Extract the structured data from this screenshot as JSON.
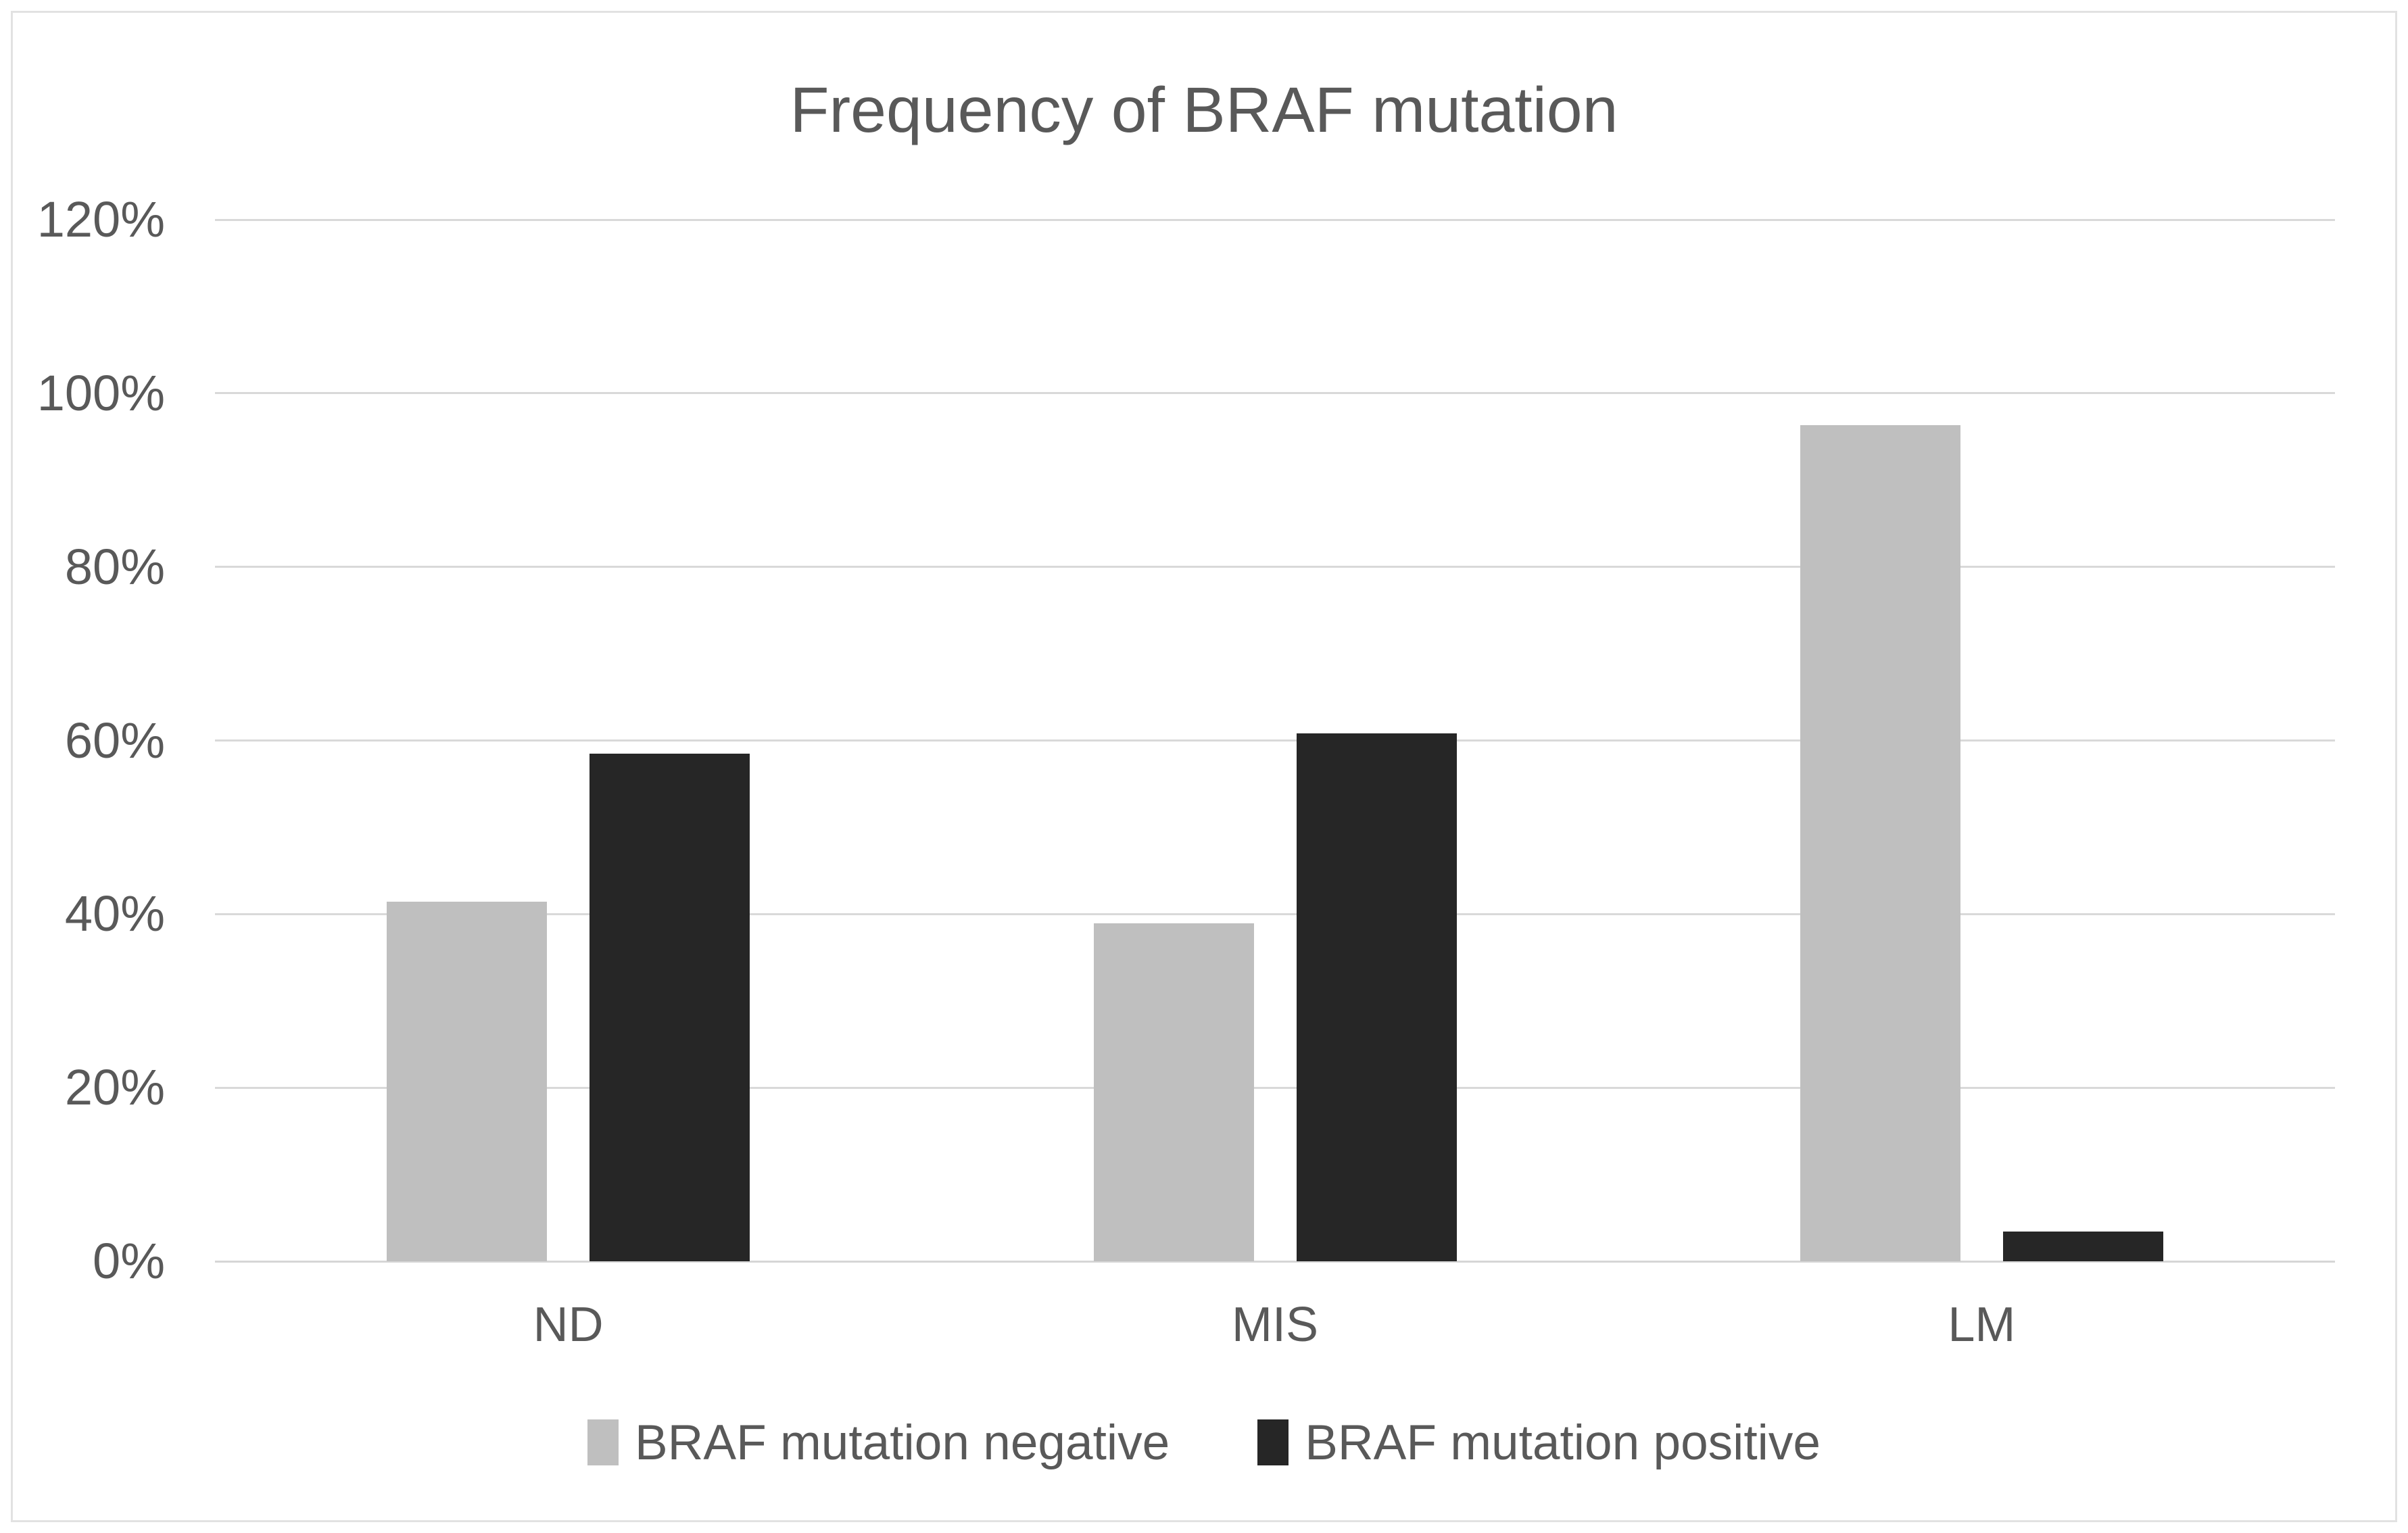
{
  "figure": {
    "background_color": "#ffffff",
    "frame_border_color": "#e2e2e2"
  },
  "chart_data": {
    "type": "bar",
    "title": "Frequency of BRAF mutation",
    "categories": [
      "ND",
      "MIS",
      "LM"
    ],
    "series": [
      {
        "name": "BRAF mutation negative",
        "color": "#bfbfbf",
        "values": [
          41.4,
          38.9,
          96.3
        ]
      },
      {
        "name": "BRAF mutation positive",
        "color": "#262626",
        "values": [
          58.5,
          60.8,
          3.4
        ]
      }
    ],
    "xlabel": "",
    "ylabel": "",
    "ylim": [
      0,
      120
    ],
    "y_tick_step": 20,
    "y_tick_labels": [
      "0%",
      "20%",
      "40%",
      "60%",
      "80%",
      "100%",
      "120%"
    ],
    "grid": true,
    "gridline_color": "#d9d9d9",
    "axis_line_color": "#d6d6d6",
    "text_color": "#595959",
    "legend_position": "bottom"
  }
}
